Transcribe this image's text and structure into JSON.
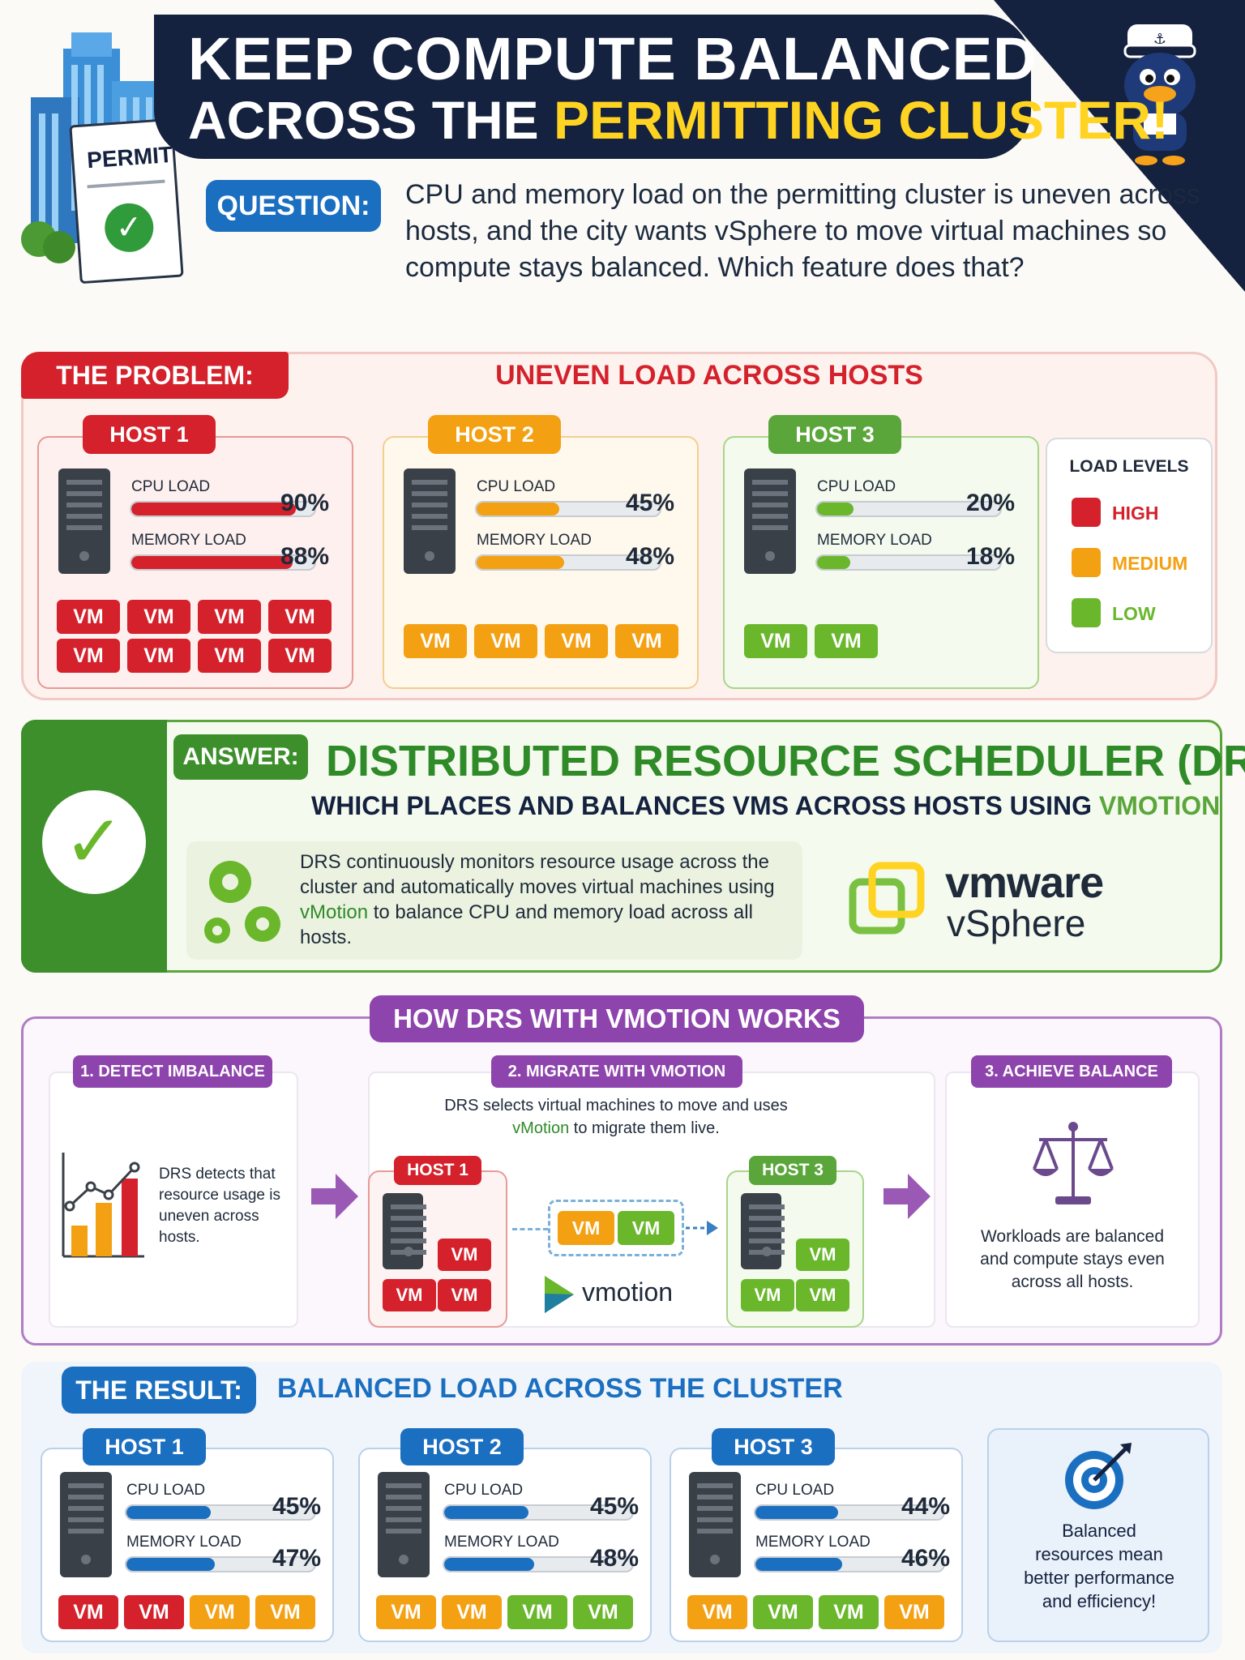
{
  "header": {
    "title_line1": "KEEP COMPUTE BALANCED",
    "title_line2_prefix": "ACROSS THE ",
    "title_line2_highlight": "PERMITTING CLUSTER!",
    "permit_label": "PERMIT"
  },
  "question": {
    "badge": "QUESTION:",
    "text": "CPU and memory load on the permitting cluster is uneven across hosts, and the city wants vSphere to move virtual machines so compute stays balanced. Which feature does that?"
  },
  "problem": {
    "badge": "THE PROBLEM:",
    "heading": "UNEVEN LOAD ACROSS HOSTS",
    "hosts": [
      {
        "name": "HOST 1",
        "cpu_label": "CPU LOAD",
        "cpu": "90%",
        "cpu_value": 0.9,
        "mem_label": "MEMORY LOAD",
        "mem": "88%",
        "mem_value": 0.88,
        "vms": [
          "VM",
          "VM",
          "VM",
          "VM",
          "VM",
          "VM",
          "VM",
          "VM"
        ]
      },
      {
        "name": "HOST 2",
        "cpu_label": "CPU LOAD",
        "cpu": "45%",
        "cpu_value": 0.45,
        "mem_label": "MEMORY LOAD",
        "mem": "48%",
        "mem_value": 0.48,
        "vms": [
          "VM",
          "VM",
          "VM",
          "VM"
        ]
      },
      {
        "name": "HOST 3",
        "cpu_label": "CPU LOAD",
        "cpu": "20%",
        "cpu_value": 0.2,
        "mem_label": "MEMORY LOAD",
        "mem": "18%",
        "mem_value": 0.18,
        "vms": [
          "VM",
          "VM"
        ]
      }
    ],
    "legend": {
      "title": "LOAD LEVELS",
      "high": "HIGH",
      "medium": "MEDIUM",
      "low": "LOW"
    }
  },
  "answer": {
    "badge": "ANSWER:",
    "title": "DISTRIBUTED RESOURCE SCHEDULER (DRS)",
    "subtitle_prefix": "WHICH PLACES AND BALANCES VMS ACROSS HOSTS USING ",
    "subtitle_highlight": "VMOTION",
    "desc_before": "DRS continuously monitors resource usage across the cluster and automatically moves virtual machines using ",
    "desc_link": "vMotion",
    "desc_after": " to balance CPU and memory load across all hosts.",
    "brand_top": "vmware",
    "brand_bottom": "vSphere"
  },
  "how": {
    "title": "HOW DRS WITH VMOTION WORKS",
    "step1": {
      "label": "1. DETECT IMBALANCE",
      "text": "DRS detects that resource usage is uneven across hosts."
    },
    "step2": {
      "label": "2. MIGRATE WITH VMOTION",
      "text_before": "DRS selects virtual machines to move and uses ",
      "text_link": "vMotion",
      "text_after": " to migrate them live.",
      "host_a": "HOST 1",
      "host_b": "HOST 3",
      "vm": "VM",
      "brand": "vmotion"
    },
    "step3": {
      "label": "3. ACHIEVE BALANCE",
      "text": "Workloads are balanced and compute stays even across all hosts."
    }
  },
  "result": {
    "badge": "THE RESULT:",
    "heading": "BALANCED LOAD ACROSS THE CLUSTER",
    "hosts": [
      {
        "name": "HOST 1",
        "cpu_label": "CPU LOAD",
        "cpu": "45%",
        "cpu_value": 0.45,
        "mem_label": "MEMORY LOAD",
        "mem": "47%",
        "mem_value": 0.47
      },
      {
        "name": "HOST 2",
        "cpu_label": "CPU LOAD",
        "cpu": "45%",
        "cpu_value": 0.45,
        "mem_label": "MEMORY LOAD",
        "mem": "48%",
        "mem_value": 0.48
      },
      {
        "name": "HOST 3",
        "cpu_label": "CPU LOAD",
        "cpu": "44%",
        "cpu_value": 0.44,
        "mem_label": "MEMORY LOAD",
        "mem": "46%",
        "mem_value": 0.46
      }
    ],
    "vm": "VM",
    "note": "Balanced resources mean better performance and efficiency!"
  },
  "colors": {
    "navy": "#14213f",
    "red": "#d4212b",
    "orange": "#f4a013",
    "green": "#6ab72c",
    "blue": "#1b6fc0",
    "purple": "#8e44ad",
    "gold": "#ffd321"
  }
}
